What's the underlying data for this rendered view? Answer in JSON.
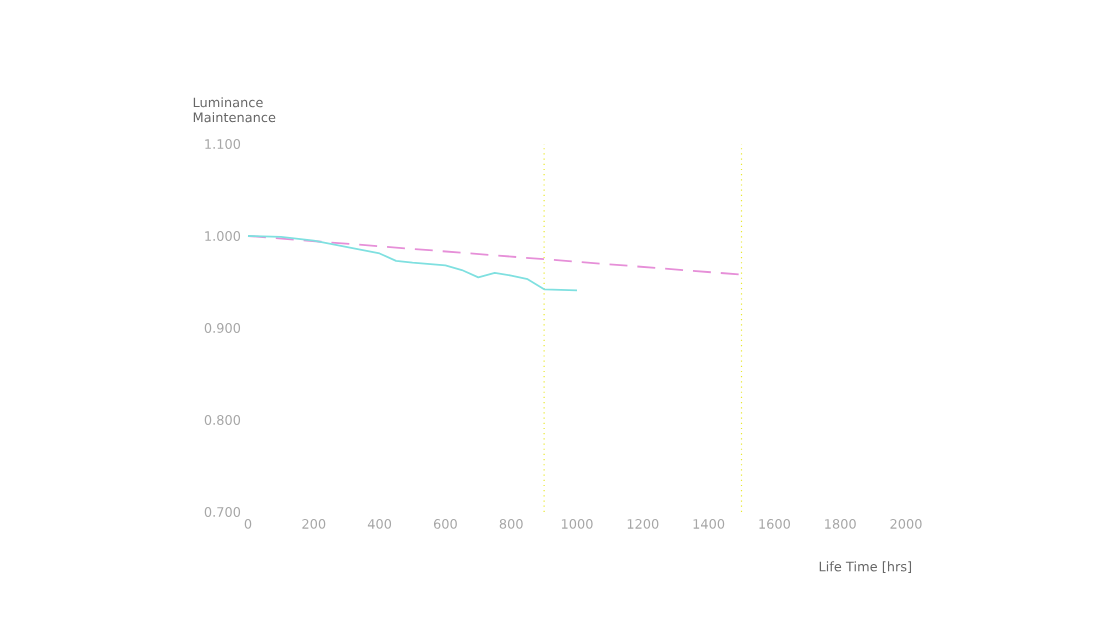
{
  "chart_data": {
    "type": "line",
    "xlabel": "Life Time [hrs]",
    "ylabel": "Luminance Maintenance",
    "xlim": [
      0,
      2000
    ],
    "ylim": [
      0.7,
      1.1
    ],
    "xticks": [
      0,
      200,
      400,
      600,
      800,
      1000,
      1200,
      1400,
      1600,
      1800,
      2000
    ],
    "yticks": [
      {
        "value": 0.7,
        "label": "0.700"
      },
      {
        "value": 0.8,
        "label": "0.800"
      },
      {
        "value": 0.9,
        "label": "0.900"
      },
      {
        "value": 1.0,
        "label": "1.000"
      },
      {
        "value": 1.1,
        "label": "1.100"
      }
    ],
    "grid": false,
    "marker": "none",
    "series": [
      {
        "color": "#e68fd8",
        "line_style": "dashed",
        "x": [
          0,
          1500
        ],
        "values": [
          1.0,
          0.958
        ]
      },
      {
        "color": "#7fe0e0",
        "line_style": "solid",
        "x": [
          0,
          100,
          200,
          300,
          400,
          450,
          500,
          600,
          650,
          700,
          750,
          800,
          850,
          900,
          1000
        ],
        "values": [
          1.0,
          0.999,
          0.995,
          0.988,
          0.981,
          0.973,
          0.971,
          0.968,
          0.963,
          0.955,
          0.96,
          0.957,
          0.953,
          0.942,
          0.941
        ]
      }
    ],
    "ref_lines": [
      {
        "axis": "x",
        "value": 900,
        "color": "#e8e830",
        "line_style": "dotted"
      },
      {
        "axis": "x",
        "value": 1500,
        "color": "#e8e830",
        "line_style": "dotted"
      }
    ]
  }
}
